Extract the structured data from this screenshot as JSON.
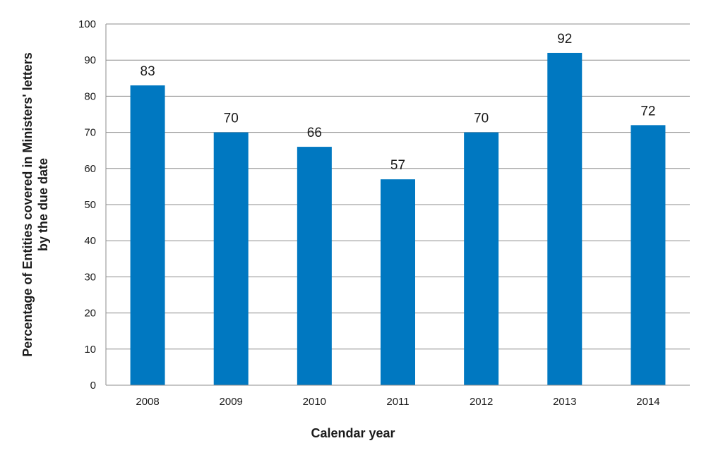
{
  "chart_data": {
    "type": "bar",
    "categories": [
      "2008",
      "2009",
      "2010",
      "2011",
      "2012",
      "2013",
      "2014"
    ],
    "values": [
      83,
      70,
      66,
      57,
      70,
      92,
      72
    ],
    "data_labels": [
      "83",
      "70",
      "66",
      "57",
      "70",
      "92",
      "72"
    ],
    "title": "",
    "xlabel": "Calendar year",
    "ylabel_lines": [
      "Percentage of Entities covered in Ministers' letters",
      "by the due date"
    ],
    "ylim": [
      0,
      100
    ],
    "yticks": [
      0,
      10,
      20,
      30,
      40,
      50,
      60,
      70,
      80,
      90,
      100
    ],
    "ytick_labels": [
      "0",
      "10",
      "20",
      "30",
      "40",
      "50",
      "60",
      "70",
      "80",
      "90",
      "100"
    ],
    "grid": true,
    "legend": "none",
    "colors": {
      "bar": "#0078c1",
      "grid": "#8c8c8c",
      "axis": "#8c8c8c",
      "text": "#1a1a1a"
    }
  }
}
